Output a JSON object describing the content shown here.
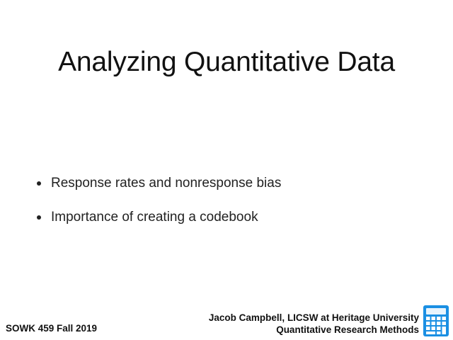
{
  "slide": {
    "title": "Analyzing Quantitative Data",
    "bullets": [
      "Response rates and nonresponse bias",
      "Importance of creating a codebook"
    ]
  },
  "footer": {
    "course": "SOWK 459 Fall 2019",
    "author": "Jacob Campbell, LICSW at Heritage University",
    "course_title": "Quantitative Research Methods"
  },
  "icons": {
    "calculator": "calculator-icon"
  },
  "colors": {
    "text": "#111111",
    "icon_blue": "#1a8fe3",
    "icon_blue_dark": "#0d6fbf"
  }
}
